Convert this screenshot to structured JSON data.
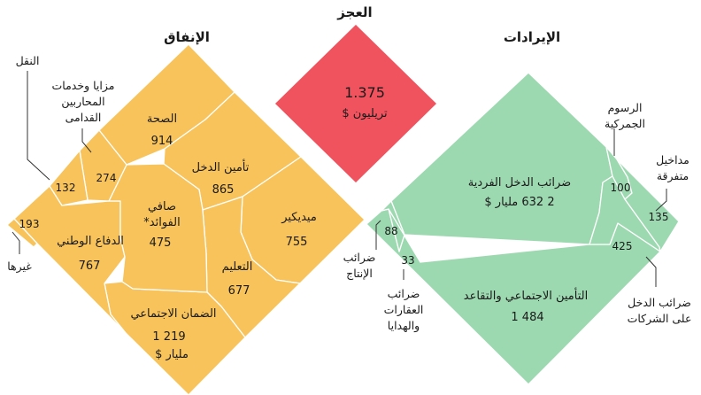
{
  "chart_data": {
    "type": "treemap",
    "titles": {
      "deficit": "العجز",
      "revenue": "الإيرادات",
      "spending": "الإنفاق"
    },
    "deficit": {
      "value_text": "1.375",
      "unit": "تريليون $",
      "value": 1.375
    },
    "spending": {
      "unit": "مليار $",
      "cells": [
        {
          "key": "health",
          "label": "الصحة",
          "value": 914,
          "value_text": "914"
        },
        {
          "key": "income_security",
          "label": "تأمين الدخل",
          "value": 865,
          "value_text": "865"
        },
        {
          "key": "medicare",
          "label": "ميديكير",
          "value": 755,
          "value_text": "755"
        },
        {
          "key": "education",
          "label": "التعليم",
          "value": 677,
          "value_text": "677"
        },
        {
          "key": "social_security",
          "label": "الضمان الاجتماعي",
          "value": 1219,
          "value_text": "1 219",
          "unit": "مليار $"
        },
        {
          "key": "defense",
          "label": "الدفاع الوطني",
          "value": 767,
          "value_text": "767"
        },
        {
          "key": "net_interest",
          "label": "صافي الفوائد*",
          "value": 475,
          "value_text": "475"
        },
        {
          "key": "veterans",
          "label": "مزايا وخدمات المحاربين القدامى",
          "value": 274,
          "value_text": "274"
        },
        {
          "key": "transport",
          "label": "النقل",
          "value": 132,
          "value_text": "132"
        },
        {
          "key": "other",
          "label": "غيرها",
          "value": 193,
          "value_text": "193"
        }
      ]
    },
    "revenue": {
      "unit": "مليار $",
      "cells": [
        {
          "key": "individual_income",
          "label": "ضرائب الدخل الفردية",
          "value": 2632,
          "value_text": "2 632 مليار $"
        },
        {
          "key": "payroll",
          "label": "التأمين الاجتماعي والتقاعد",
          "value": 1484,
          "value_text": "1 484"
        },
        {
          "key": "corporate",
          "label": "ضرائب الدخل على الشركات",
          "value": 425,
          "value_text": "425"
        },
        {
          "key": "customs",
          "label": "الرسوم الجمركية",
          "value": 100,
          "value_text": "100"
        },
        {
          "key": "misc",
          "label": "مداخيل متفرقة",
          "value": 135,
          "value_text": "135"
        },
        {
          "key": "excise",
          "label": "ضرائب الإنتاج",
          "value": 88,
          "value_text": "88"
        },
        {
          "key": "estate_gift",
          "label": "ضرائب العقارات والهدايا",
          "value": 33,
          "value_text": "33"
        }
      ]
    },
    "colors": {
      "spending": "#f7c35a",
      "revenue": "#9dd9b0",
      "deficit": "#f0535e",
      "edge": "#ffffff",
      "leader": "#333333"
    }
  }
}
